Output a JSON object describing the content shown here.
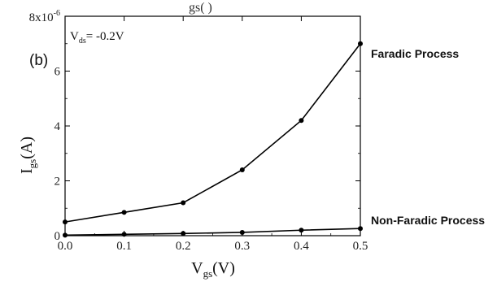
{
  "chart_data": {
    "type": "line",
    "panel_label": "(b)",
    "top_cut_label": "gs( )",
    "annotation": {
      "prefix": "V",
      "sub": "ds",
      "suffix": "= -0.2V"
    },
    "xlabel": {
      "main": "V",
      "sub": "gs",
      "unit": "(V)"
    },
    "ylabel": {
      "main": "I",
      "sub": "gs",
      "unit": "(A)"
    },
    "xlim": [
      0.0,
      0.5
    ],
    "ylim": [
      0,
      8
    ],
    "y_scale_note": "8x10^-6",
    "y_top_label": {
      "base": "8x10",
      "exp": "-6"
    },
    "x_ticks": [
      "0.0",
      "0.1",
      "0.2",
      "0.3",
      "0.4",
      "0.5"
    ],
    "y_ticks": [
      "0",
      "2",
      "4",
      "6"
    ],
    "series": [
      {
        "name": "Faradic Process",
        "color": "#000000",
        "x": [
          0.0,
          0.1,
          0.2,
          0.3,
          0.4,
          0.5
        ],
        "y": [
          0.5,
          0.85,
          1.2,
          2.4,
          4.2,
          7.0
        ]
      },
      {
        "name": "Non-Faradic Process",
        "color": "#000000",
        "x": [
          0.0,
          0.1,
          0.2,
          0.3,
          0.4,
          0.5
        ],
        "y": [
          0.02,
          0.05,
          0.08,
          0.12,
          0.2,
          0.26
        ]
      }
    ]
  }
}
